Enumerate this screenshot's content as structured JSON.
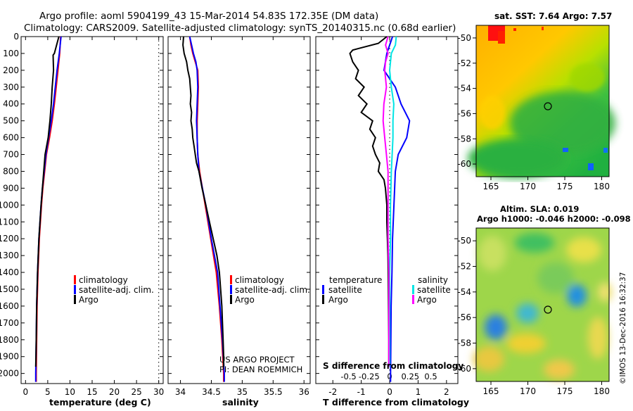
{
  "header": {
    "title_line1": "Argo profile: aoml 5904199_43 15-Mar-2014 54.83S 172.35E (DM data)",
    "title_line2": "Climatology: CARS2009. Satellite-adjusted climatology: synTS_20140315.nc (0.68d earlier)"
  },
  "depth_ticks": [
    0,
    100,
    200,
    300,
    400,
    500,
    600,
    700,
    800,
    900,
    1000,
    1100,
    1200,
    1300,
    1400,
    1500,
    1600,
    1700,
    1800,
    1900,
    2000
  ],
  "colors": {
    "clim": "#ff0000",
    "sat": "#0000ff",
    "argo": "#000000",
    "sat_s": "#00e5e5",
    "argo_s": "#ff00ff"
  },
  "chart_data": [
    {
      "type": "line",
      "xlabel": "temperature (deg C)",
      "ylabel": "depth",
      "xlim": [
        -1,
        31
      ],
      "ylim": [
        2060,
        0
      ],
      "xticks": [
        0,
        5,
        10,
        15,
        20,
        25,
        30
      ],
      "legend": [
        "climatology",
        "satellite-adj. clim.",
        "Argo"
      ],
      "series": [
        {
          "name": "climatology",
          "depth": [
            0,
            100,
            200,
            300,
            400,
            500,
            600,
            700,
            800,
            900,
            1000,
            1200,
            1400,
            1600,
            1800,
            2000,
            2050
          ],
          "values": [
            7.9,
            7.7,
            7.3,
            6.9,
            6.5,
            6.0,
            5.4,
            4.7,
            4.3,
            3.9,
            3.6,
            3.1,
            2.8,
            2.6,
            2.5,
            2.4,
            2.4
          ]
        },
        {
          "name": "satellite-adj. clim.",
          "depth": [
            0,
            100,
            200,
            300,
            400,
            500,
            600,
            700,
            800,
            900,
            1000,
            1200,
            1400,
            1600,
            1800,
            2000,
            2050
          ],
          "values": [
            8.0,
            7.6,
            7.1,
            6.7,
            6.3,
            5.8,
            5.2,
            4.6,
            4.2,
            3.8,
            3.5,
            3.0,
            2.7,
            2.5,
            2.4,
            2.3,
            2.3
          ]
        },
        {
          "name": "Argo",
          "depth": [
            0,
            100,
            110,
            200,
            300,
            400,
            500,
            600,
            700,
            800,
            900,
            1000,
            1200,
            1400,
            1600,
            1800,
            1900,
            1960
          ],
          "values": [
            7.5,
            6.5,
            6.2,
            6.3,
            6.0,
            5.8,
            5.5,
            5.1,
            4.4,
            4.1,
            3.8,
            3.5,
            3.0,
            2.7,
            2.5,
            2.4,
            2.35,
            2.3
          ]
        }
      ]
    },
    {
      "type": "line",
      "xlabel": "salinity",
      "xlim": [
        33.8,
        36.1
      ],
      "ylim": [
        2060,
        0
      ],
      "xticks": [
        34,
        34.5,
        35,
        35.5,
        36
      ],
      "xtick_labels": [
        "34",
        "34.5",
        "35",
        "35.5",
        "36"
      ],
      "legend": [
        "climatology",
        "satellite-adj. clim.",
        "Argo"
      ],
      "annotation": [
        "US ARGO PROJECT",
        "PI: DEAN ROEMMICH"
      ],
      "series": [
        {
          "name": "climatology",
          "depth": [
            0,
            50,
            100,
            150,
            200,
            300,
            400,
            500,
            600,
            700,
            800,
            1000,
            1200,
            1400,
            1600,
            1800,
            2000,
            2050
          ],
          "values": [
            34.15,
            34.17,
            34.2,
            34.24,
            34.28,
            34.29,
            34.28,
            34.27,
            34.27,
            34.28,
            34.31,
            34.4,
            34.49,
            34.58,
            34.63,
            34.67,
            34.7,
            34.7
          ]
        },
        {
          "name": "satellite-adj. clim.",
          "depth": [
            0,
            50,
            100,
            150,
            200,
            300,
            400,
            500,
            600,
            700,
            800,
            1000,
            1200,
            1400,
            1600,
            1800,
            2000,
            2050
          ],
          "values": [
            34.15,
            34.18,
            34.21,
            34.25,
            34.27,
            34.28,
            34.27,
            34.26,
            34.27,
            34.28,
            34.3,
            34.41,
            34.5,
            34.6,
            34.64,
            34.68,
            34.71,
            34.71
          ]
        },
        {
          "name": "Argo",
          "depth": [
            0,
            50,
            100,
            150,
            200,
            250,
            300,
            350,
            400,
            450,
            500,
            550,
            600,
            650,
            700,
            750,
            800,
            900,
            1000,
            1100,
            1200,
            1300,
            1400,
            1500,
            1600,
            1700,
            1800,
            1900,
            1960
          ],
          "values": [
            34.05,
            34.04,
            34.06,
            34.1,
            34.12,
            34.15,
            34.16,
            34.17,
            34.16,
            34.18,
            34.17,
            34.19,
            34.2,
            34.22,
            34.24,
            34.26,
            34.3,
            34.35,
            34.41,
            34.47,
            34.53,
            34.59,
            34.63,
            34.65,
            34.67,
            34.68,
            34.69,
            34.7,
            34.7
          ]
        }
      ]
    },
    {
      "type": "line",
      "xlabel": "T difference from climatology",
      "xlabel2": "S difference from climatology",
      "xlim": [
        -2.6,
        2.4
      ],
      "ylim": [
        2060,
        0
      ],
      "xticks": [
        -2,
        -1,
        0,
        1,
        2
      ],
      "xtick_labels": [
        "-2",
        "-1",
        "0",
        "1",
        "2"
      ],
      "s_ticks": [
        -0.5,
        -0.25,
        0,
        0.25,
        0.5
      ],
      "s_tick_labels": [
        "-0.5",
        "-0.25",
        "0",
        "0.25",
        "0.5"
      ],
      "legend_headers": [
        "temperature",
        "salinity"
      ],
      "legend": [
        "satellite",
        "Argo",
        "satellite",
        "Argo"
      ],
      "series": [
        {
          "name": "satellite (T)",
          "depth": [
            0,
            100,
            200,
            300,
            400,
            500,
            600,
            700,
            800,
            1000,
            1200,
            1400,
            1600,
            1800,
            2000,
            2050
          ],
          "values": [
            0.1,
            -0.1,
            -0.2,
            0.2,
            0.4,
            0.7,
            0.6,
            0.3,
            0.2,
            0.15,
            0.1,
            0.08,
            0.05,
            0.04,
            0.03,
            0.03
          ]
        },
        {
          "name": "Argo (T)",
          "depth": [
            0,
            40,
            80,
            100,
            150,
            200,
            250,
            300,
            350,
            400,
            450,
            500,
            550,
            600,
            650,
            700,
            750,
            800,
            850,
            900,
            1000,
            1100,
            1200,
            1300,
            1400,
            1600,
            1800,
            1960
          ],
          "values": [
            -0.1,
            -0.4,
            -1.3,
            -1.4,
            -1.3,
            -1.1,
            -1.2,
            -0.9,
            -1.1,
            -0.8,
            -1.0,
            -0.6,
            -0.7,
            -0.5,
            -0.6,
            -0.5,
            -0.35,
            -0.4,
            -0.2,
            -0.15,
            -0.1,
            -0.1,
            -0.08,
            -0.06,
            -0.05,
            -0.04,
            -0.03,
            -0.03
          ]
        },
        {
          "name": "satellite (S)",
          "depth": [
            0,
            50,
            100,
            200,
            300,
            400,
            500,
            600,
            800,
            1000,
            1200,
            1400,
            1600,
            1800,
            1960
          ],
          "values": [
            0.08,
            0.07,
            0.02,
            0.0,
            0.02,
            0.05,
            0.04,
            0.04,
            0.02,
            0.01,
            0.01,
            0.0,
            0.0,
            0.0,
            0.0
          ]
        },
        {
          "name": "Argo (S)",
          "depth": [
            0,
            50,
            100,
            150,
            200,
            300,
            400,
            500,
            600,
            700,
            800,
            1000,
            1200,
            1400,
            1600,
            1800,
            1960
          ],
          "values": [
            -0.02,
            -0.05,
            -0.02,
            -0.05,
            -0.06,
            -0.04,
            -0.07,
            -0.08,
            -0.06,
            -0.04,
            -0.02,
            -0.02,
            -0.02,
            -0.01,
            -0.01,
            -0.01,
            -0.01
          ]
        }
      ]
    },
    {
      "type": "heatmap",
      "title": "sat. SST: 7.64 Argo: 7.57",
      "xticks": [
        165,
        170,
        175,
        180
      ],
      "yticks": [
        -50,
        -52,
        -54,
        -56,
        -58,
        -60
      ],
      "xlim": [
        163,
        181
      ],
      "ylim": [
        -61,
        -49
      ]
    },
    {
      "type": "heatmap",
      "title_line1": "Altim. SLA: 0.019",
      "title_line2": "Argo h1000: -0.046 h2000: -0.098",
      "xticks": [
        165,
        170,
        175,
        180
      ],
      "yticks": [
        -50,
        -52,
        -54,
        -56,
        -58,
        -60
      ],
      "xlim": [
        163,
        181
      ],
      "ylim": [
        -61,
        -49
      ]
    }
  ],
  "footer": {
    "stamp": "©IMOS 13-Dec-2016 16:32:37"
  }
}
